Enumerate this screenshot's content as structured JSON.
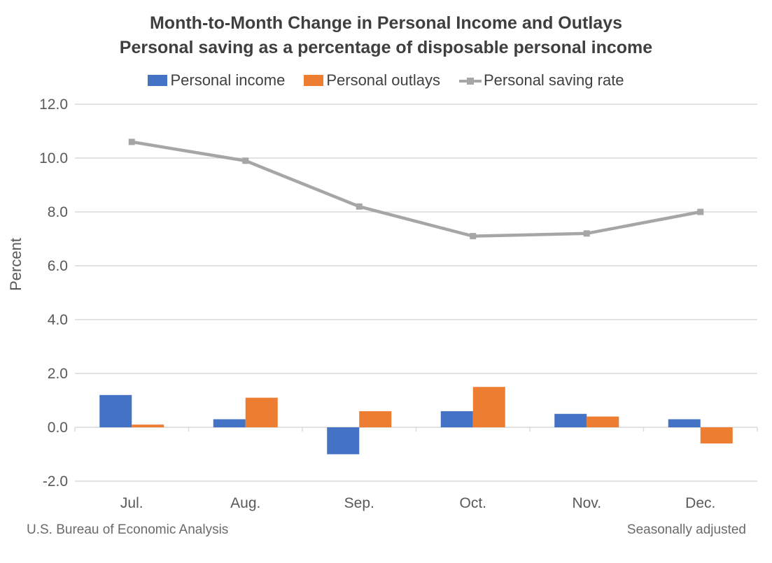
{
  "title": {
    "line1": "Month-to-Month Change in Personal Income and Outlays",
    "line2": "Personal saving as a percentage of disposable personal income"
  },
  "legend": {
    "items": [
      {
        "label": "Personal income",
        "color": "#4472C4",
        "glyph": "square"
      },
      {
        "label": "Personal outlays",
        "color": "#ED7D31",
        "glyph": "square"
      },
      {
        "label": "Personal saving rate",
        "color": "#A6A6A6",
        "glyph": "line-marker"
      }
    ]
  },
  "y_axis": {
    "title": "Percent",
    "tick_labels": [
      "12.0",
      "10.0",
      "8.0",
      "6.0",
      "4.0",
      "2.0",
      "0.0",
      "-2.0"
    ],
    "tick_values": [
      12,
      10,
      8,
      6,
      4,
      2,
      0,
      -2
    ]
  },
  "x_axis": {
    "tick_labels": [
      "Jul.",
      "Aug.",
      "Sep.",
      "Oct.",
      "Nov.",
      "Dec."
    ]
  },
  "footer": {
    "left": "U.S. Bureau of Economic Analysis",
    "right": "Seasonally adjusted"
  },
  "colors": {
    "income_bar": "#4472C4",
    "outlays_bar": "#ED7D31",
    "saving_line": "#A6A6A6",
    "gridline": "#D9D9D9",
    "axis_text": "#595959",
    "title_text": "#3F3F3F",
    "footer_text": "#6A6A6A"
  },
  "chart_data": {
    "type": "combo",
    "title": "Month-to-Month Change in Personal Income and Outlays",
    "subtitle": "Personal saving as a percentage of disposable personal income",
    "categories": [
      "Jul.",
      "Aug.",
      "Sep.",
      "Oct.",
      "Nov.",
      "Dec."
    ],
    "series": [
      {
        "name": "Personal income",
        "type": "bar",
        "color": "#4472C4",
        "values": [
          1.2,
          0.3,
          -1.0,
          0.6,
          0.5,
          0.3
        ]
      },
      {
        "name": "Personal outlays",
        "type": "bar",
        "color": "#ED7D31",
        "values": [
          0.1,
          1.1,
          0.6,
          1.5,
          0.4,
          -0.6
        ]
      },
      {
        "name": "Personal saving rate",
        "type": "line",
        "color": "#A6A6A6",
        "values": [
          10.6,
          9.9,
          8.2,
          7.1,
          7.2,
          8.0
        ]
      }
    ],
    "xlabel": "",
    "ylabel": "Percent",
    "ylim": [
      -2,
      12
    ],
    "ytick_step": 2,
    "grid": true,
    "legend_position": "top"
  }
}
